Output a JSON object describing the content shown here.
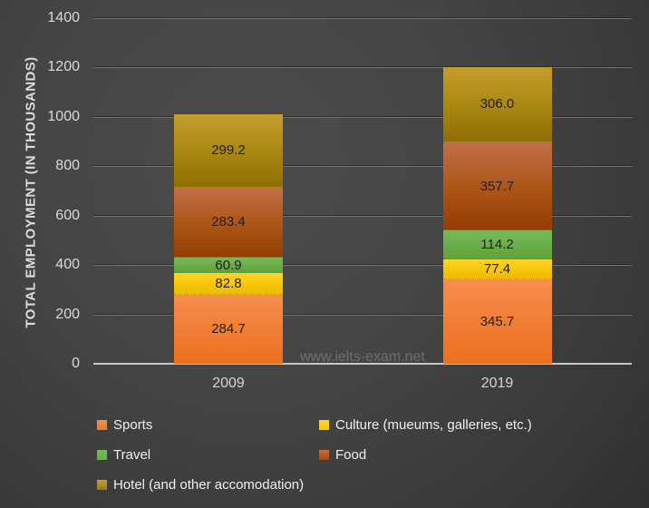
{
  "watermark": "www.ielts-exam.net",
  "chart_data": {
    "type": "bar",
    "stacked": true,
    "title": "",
    "ylabel": "TOTAL EMPLOYMENT (IN THOUSANDS)",
    "xlabel": "",
    "ylim": [
      0,
      1400
    ],
    "ytick_step": 200,
    "yticks": [
      0,
      200,
      400,
      600,
      800,
      1000,
      1200,
      1400
    ],
    "grid": true,
    "legend_position": "bottom",
    "categories": [
      "2009",
      "2019"
    ],
    "series": [
      {
        "name": "Sports",
        "values": [
          284.7,
          345.7
        ],
        "gradient": [
          "#F68E4E",
          "#F07C33",
          "#EC6F1E"
        ],
        "legend_color": "#EE7A25"
      },
      {
        "name": "Culture (mueums, galleries, etc.)",
        "values": [
          82.8,
          77.4
        ],
        "gradient": [
          "#FFD428",
          "#F7C60A",
          "#EDBA00"
        ],
        "legend_color": "#FFC408"
      },
      {
        "name": "Travel",
        "values": [
          60.9,
          114.2
        ],
        "gradient": [
          "#77B95A",
          "#6AAD48",
          "#5FA238"
        ],
        "legend_color": "#6BAE49"
      },
      {
        "name": "Food",
        "values": [
          283.4,
          357.7
        ],
        "gradient": [
          "#C16F4A",
          "#AC5415",
          "#953E04"
        ],
        "legend_color": "#A54B10"
      },
      {
        "name": "Hotel (and other accomodation)",
        "values": [
          299.2,
          306.0
        ],
        "gradient": [
          "#C59D2E",
          "#A8860F",
          "#8F6E05"
        ],
        "legend_color": "#9A7A0D"
      }
    ],
    "value_label_decimals": 1
  }
}
